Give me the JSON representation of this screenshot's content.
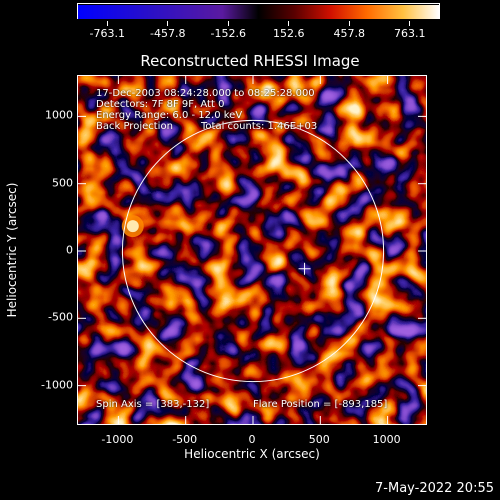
{
  "colorbar": {
    "labels": [
      "-763.1",
      "-457.8",
      "-152.6",
      "152.6",
      "457.8",
      "763.1"
    ],
    "min": -763.1,
    "max": 763.1
  },
  "title": "Reconstructed RHESSI Image",
  "info": {
    "time_range": "17-Dec-2003 08:24:28.000 to 08:25:28.000",
    "detectors": "Detectors: 7F 8F 9F, Att 0",
    "energy": "Energy Range: 6.0 - 12.0 keV",
    "method": "Back Projection",
    "counts": "Total counts: 1.46E+03",
    "spin_axis": "Spin Axis = [383,-132]",
    "flare_position": "Flare Position = [-893,185]"
  },
  "footer": {
    "date": "7-May-2022 20:55"
  },
  "chart_data": {
    "type": "heatmap",
    "title": "Reconstructed RHESSI Image",
    "xlabel": "Heliocentric X (arcsec)",
    "ylabel": "Heliocentric Y (arcsec)",
    "xlim": [
      -1300,
      1300
    ],
    "ylim": [
      -1300,
      1300
    ],
    "x_ticks": [
      "-1000",
      "-500",
      "0",
      "500",
      "1000"
    ],
    "y_ticks": [
      "1000",
      "500",
      "0",
      "-500",
      "-1000"
    ],
    "x_tick_values": [
      -1000,
      -500,
      0,
      500,
      1000
    ],
    "y_tick_values": [
      1000,
      500,
      0,
      -500,
      -1000
    ],
    "solar_disk_radius": 970,
    "spin_axis": [
      383,
      -132
    ],
    "flare_position": [
      -893,
      185
    ],
    "colorbar_range": [
      -763.1,
      763.1
    ]
  }
}
